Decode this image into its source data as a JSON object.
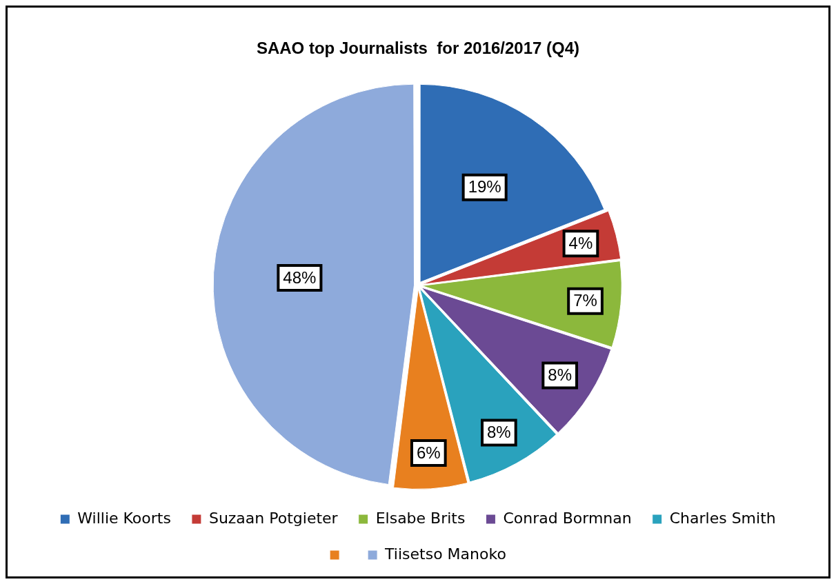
{
  "chart_data": {
    "type": "pie",
    "title": "SAAO top Journalists  for 2016/2017 (Q4)",
    "categories": [
      "Willie Koorts",
      "Suzaan Potgieter",
      "Elsabe Brits",
      "Conrad Bormnan",
      "Charles Smith",
      null,
      "Tiisetso Manoko"
    ],
    "values": [
      19,
      4,
      7,
      8,
      8,
      6,
      48
    ],
    "colors": [
      "#2f6db5",
      "#c43b36",
      "#8cb83c",
      "#6b4a94",
      "#2aa2bd",
      "#e8801f",
      "#8eaadb"
    ],
    "value_labels": [
      "19%",
      "4%",
      "7%",
      "8%",
      "8%",
      "6%",
      "48%"
    ],
    "legend": "bottom"
  }
}
